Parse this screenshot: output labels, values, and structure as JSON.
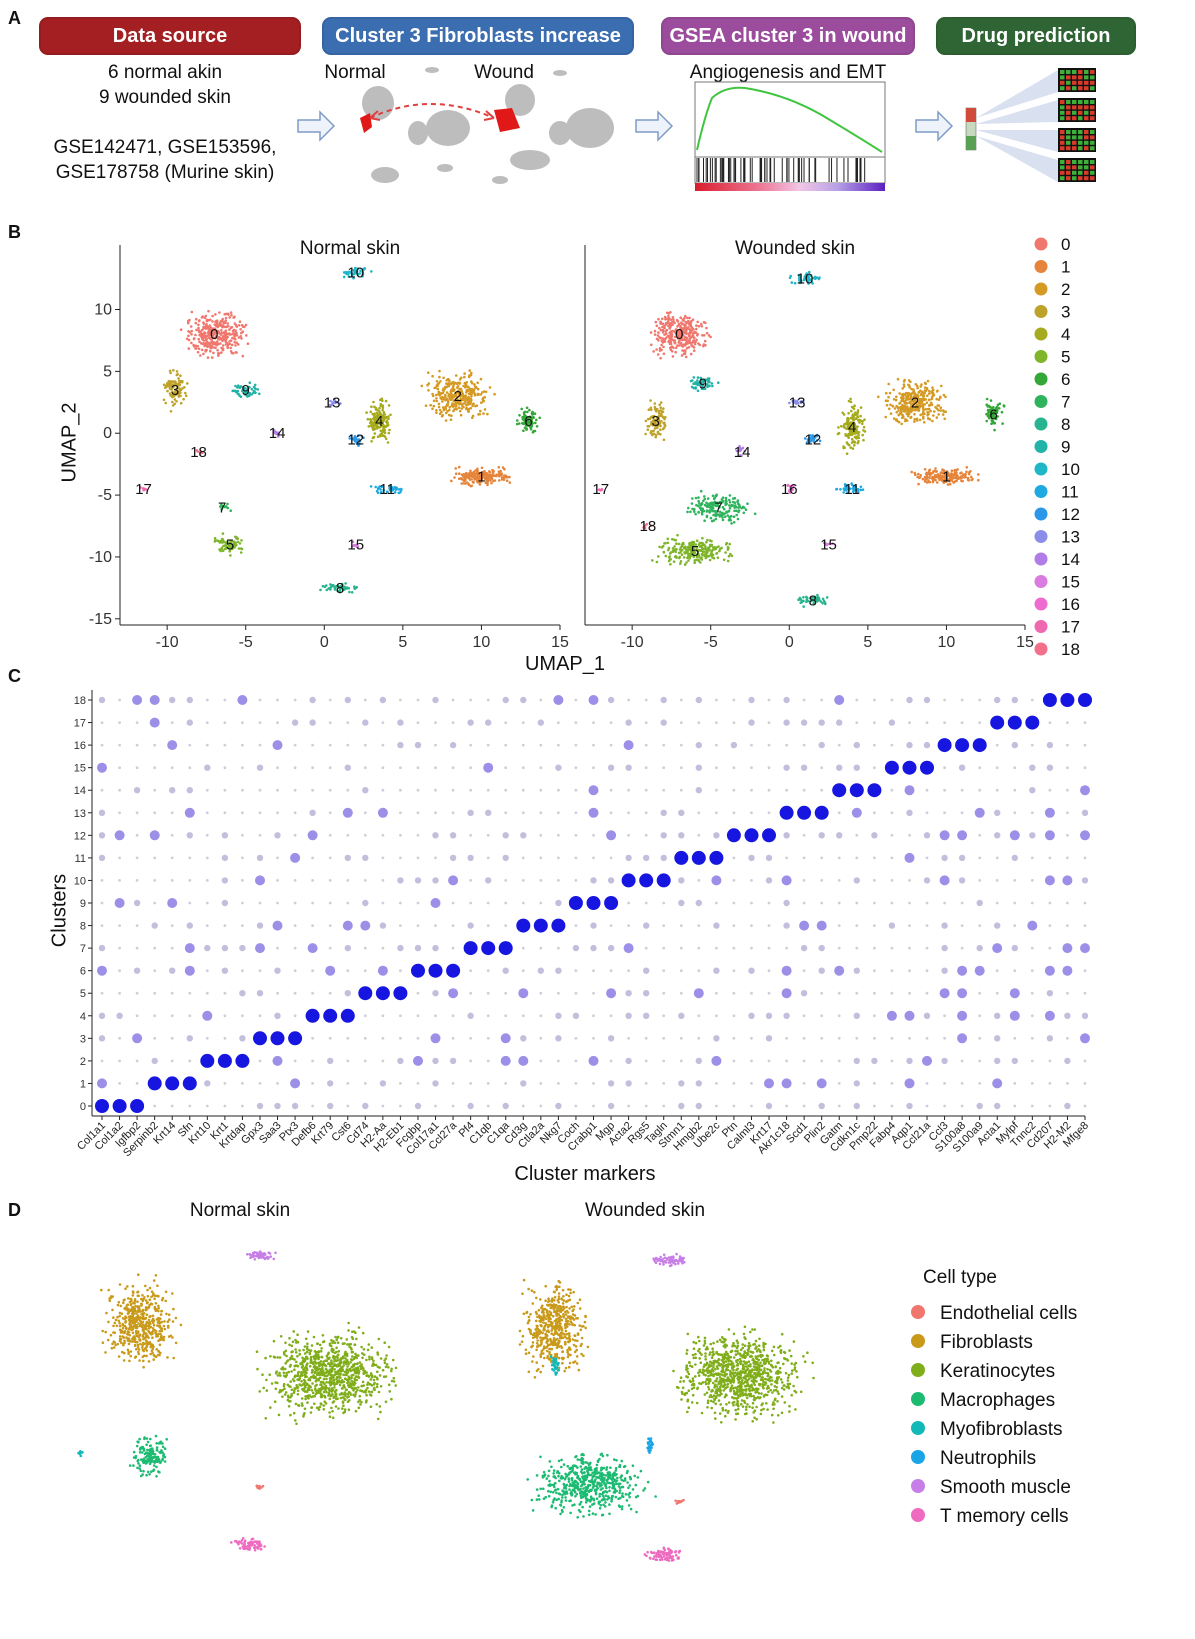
{
  "panel_a": {
    "letter": "A",
    "banners": [
      {
        "label": "Data source",
        "color": "#a41f22"
      },
      {
        "label": "Cluster 3 Fibroblasts increase",
        "color": "#3b6db1"
      },
      {
        "label": "GSEA cluster 3 in wound",
        "color": "#9b4c9c"
      },
      {
        "label": "Drug prediction",
        "color": "#2f6534"
      }
    ],
    "data_source_line1": "6 normal akin",
    "data_source_line2": "9 wounded skin",
    "data_source_line3": "GSE142471, GSE153596,",
    "data_source_line4": "GSE178758 (Murine skin)",
    "umap_normal_label": "Normal",
    "umap_wound_label": "Wound",
    "gsea_label": "Angiogenesis and EMT"
  },
  "panel_b": {
    "letter": "B",
    "left_title": "Normal skin",
    "right_title": "Wounded skin",
    "x_axis_label": "UMAP_1",
    "y_axis_label": "UMAP_2",
    "legend": [
      {
        "label": "0",
        "color": "#f0776e"
      },
      {
        "label": "1",
        "color": "#e5843a"
      },
      {
        "label": "2",
        "color": "#d49a24"
      },
      {
        "label": "3",
        "color": "#bfa22a"
      },
      {
        "label": "4",
        "color": "#a5ab1c"
      },
      {
        "label": "5",
        "color": "#7eb52a"
      },
      {
        "label": "6",
        "color": "#33a838"
      },
      {
        "label": "7",
        "color": "#2fb45d"
      },
      {
        "label": "8",
        "color": "#27b48e"
      },
      {
        "label": "9",
        "color": "#22b3a8"
      },
      {
        "label": "10",
        "color": "#1fb6c8"
      },
      {
        "label": "11",
        "color": "#1eaae0"
      },
      {
        "label": "12",
        "color": "#2b97e8"
      },
      {
        "label": "13",
        "color": "#8b8ee8"
      },
      {
        "label": "14",
        "color": "#b07ce8"
      },
      {
        "label": "15",
        "color": "#d97be0"
      },
      {
        "label": "16",
        "color": "#ee6bd0"
      },
      {
        "label": "17",
        "color": "#f068b0"
      },
      {
        "label": "18",
        "color": "#f2708a"
      }
    ]
  },
  "panel_c": {
    "letter": "C",
    "y_axis_label": "Clusters",
    "x_axis_label": "Cluster markers"
  },
  "panel_d": {
    "letter": "D",
    "left_title": "Normal skin",
    "right_title": "Wounded skin",
    "legend_title": "Cell type",
    "legend": [
      {
        "label": "Endothelial cells",
        "color": "#f0776e"
      },
      {
        "label": "Fibroblasts",
        "color": "#c99a1a"
      },
      {
        "label": "Keratinocytes",
        "color": "#80ae1a"
      },
      {
        "label": "Macrophages",
        "color": "#1dbb72"
      },
      {
        "label": "Myofibroblasts",
        "color": "#13b8b8"
      },
      {
        "label": "Neutrophils",
        "color": "#1aa6e6"
      },
      {
        "label": "Smooth muscle",
        "color": "#c77ee6"
      },
      {
        "label": "T memory cells",
        "color": "#ee6bc0"
      }
    ]
  },
  "chart_data": [
    {
      "type": "scatter",
      "title": "Normal skin",
      "xlabel": "UMAP_1",
      "ylabel": "UMAP_2",
      "xlim": [
        -13,
        15
      ],
      "ylim": [
        -15.5,
        14
      ],
      "xticks": [
        -10,
        -5,
        0,
        5,
        10,
        15
      ],
      "yticks": [
        -15,
        -10,
        -5,
        0,
        5,
        10
      ],
      "clusters": [
        {
          "label": "0",
          "x": -7,
          "y": 8
        },
        {
          "label": "1",
          "x": 10,
          "y": -3.5
        },
        {
          "label": "2",
          "x": 8.5,
          "y": 3
        },
        {
          "label": "3",
          "x": -9.5,
          "y": 3.5
        },
        {
          "label": "4",
          "x": 3.5,
          "y": 1
        },
        {
          "label": "5",
          "x": -6,
          "y": -9
        },
        {
          "label": "6",
          "x": 13,
          "y": 1
        },
        {
          "label": "7",
          "x": -6.5,
          "y": -6
        },
        {
          "label": "8",
          "x": 1,
          "y": -12.5
        },
        {
          "label": "9",
          "x": -5,
          "y": 3.5
        },
        {
          "label": "10",
          "x": 2,
          "y": 13
        },
        {
          "label": "11",
          "x": 4,
          "y": -4.5
        },
        {
          "label": "12",
          "x": 2,
          "y": -0.5
        },
        {
          "label": "13",
          "x": 0.5,
          "y": 2.5
        },
        {
          "label": "14",
          "x": -3,
          "y": 0
        },
        {
          "label": "15",
          "x": 2,
          "y": -9
        },
        {
          "label": "17",
          "x": -11.5,
          "y": -4.5
        },
        {
          "label": "18",
          "x": -8,
          "y": -1.5
        }
      ]
    },
    {
      "type": "scatter",
      "title": "Wounded skin",
      "xlabel": "UMAP_1",
      "xlim": [
        -13,
        15
      ],
      "ylim": [
        -15.5,
        14
      ],
      "xticks": [
        -10,
        -5,
        0,
        5,
        10,
        15
      ],
      "clusters": [
        {
          "label": "0",
          "x": -7,
          "y": 8
        },
        {
          "label": "1",
          "x": 10,
          "y": -3.5
        },
        {
          "label": "2",
          "x": 8,
          "y": 2.5
        },
        {
          "label": "3",
          "x": -8.5,
          "y": 1
        },
        {
          "label": "4",
          "x": 4,
          "y": 0.5
        },
        {
          "label": "5",
          "x": -6,
          "y": -9.5
        },
        {
          "label": "6",
          "x": 13,
          "y": 1.5
        },
        {
          "label": "7",
          "x": -4.5,
          "y": -6
        },
        {
          "label": "8",
          "x": 1.5,
          "y": -13.5
        },
        {
          "label": "9",
          "x": -5.5,
          "y": 4
        },
        {
          "label": "10",
          "x": 1,
          "y": 12.5
        },
        {
          "label": "11",
          "x": 4,
          "y": -4.5
        },
        {
          "label": "12",
          "x": 1.5,
          "y": -0.5
        },
        {
          "label": "13",
          "x": 0.5,
          "y": 2.5
        },
        {
          "label": "14",
          "x": -3,
          "y": -1.5
        },
        {
          "label": "15",
          "x": 2.5,
          "y": -9
        },
        {
          "label": "16",
          "x": 0,
          "y": -4.5
        },
        {
          "label": "17",
          "x": -12,
          "y": -4.5
        },
        {
          "label": "18",
          "x": -9,
          "y": -7.5
        }
      ]
    },
    {
      "type": "heatmap",
      "subtype": "dotplot",
      "xlabel": "Cluster markers",
      "ylabel": "Clusters",
      "categories": [
        "Col1a1",
        "Col1a2",
        "Igfbp2",
        "Serpinb2",
        "Krt14",
        "Sfn",
        "Krt10",
        "Krt1",
        "Krtdap",
        "Gpx3",
        "Saa3",
        "Ptx3",
        "Defb6",
        "Krt79",
        "Cst6",
        "Cd74",
        "H2-Aa",
        "H2-Eb1",
        "Fcgbp",
        "Col17a1",
        "Ccl27a",
        "Pf4",
        "C1qb",
        "C1qa",
        "Cd3g",
        "Ctla2a",
        "Nkg7",
        "Coch",
        "Crabp1",
        "Mgp",
        "Acta2",
        "Rgs5",
        "Tagln",
        "Stmn1",
        "Hmgb2",
        "Ube2c",
        "Ptn",
        "Calml3",
        "Krt17",
        "Akr1c18",
        "Scd1",
        "Plin2",
        "Gatm",
        "Cdkn1c",
        "Pmp22",
        "Fabp4",
        "Aqp1",
        "Ccl21a",
        "Ccl3",
        "S100a8",
        "S100a9",
        "Acta1",
        "Mylpf",
        "Tnnc2",
        "Cd207",
        "H2-M2",
        "Mfge8"
      ],
      "clusters": [
        "0",
        "1",
        "2",
        "3",
        "4",
        "5",
        "6",
        "7",
        "8",
        "9",
        "10",
        "11",
        "12",
        "13",
        "14",
        "15",
        "16",
        "17",
        "18"
      ],
      "top_markers": {
        "0": [
          "Col1a1",
          "Col1a2",
          "Igfbp2"
        ],
        "1": [
          "Serpinb2",
          "Krt14",
          "Sfn"
        ],
        "2": [
          "Krt10",
          "Krt1",
          "Krtdap"
        ],
        "3": [
          "Gpx3",
          "Saa3",
          "Ptx3"
        ],
        "4": [
          "Defb6",
          "Krt79",
          "Cst6"
        ],
        "5": [
          "Cd74",
          "H2-Aa",
          "H2-Eb1"
        ],
        "6": [
          "Fcgbp",
          "Col17a1",
          "Ccl27a"
        ],
        "7": [
          "Pf4",
          "C1qb",
          "C1qa"
        ],
        "8": [
          "Cd3g",
          "Ctla2a",
          "Nkg7"
        ],
        "9": [
          "Coch",
          "Crabp1",
          "Mgp"
        ],
        "10": [
          "Acta2",
          "Rgs5",
          "Tagln"
        ],
        "11": [
          "Stmn1",
          "Hmgb2",
          "Ube2c"
        ],
        "12": [
          "Ptn",
          "Calml3",
          "Krt17"
        ],
        "13": [
          "Akr1c18",
          "Scd1",
          "Plin2"
        ],
        "14": [
          "Gatm",
          "Cdkn1c",
          "Pmp22"
        ],
        "15": [
          "Fabp4",
          "Aqp1",
          "Ccl21a"
        ],
        "16": [
          "Ccl3",
          "S100a8",
          "S100a9"
        ],
        "17": [
          "Acta1",
          "Mylpf",
          "Tnnc2"
        ],
        "18": [
          "Cd207",
          "H2-M2",
          "Mfge8"
        ]
      }
    }
  ]
}
